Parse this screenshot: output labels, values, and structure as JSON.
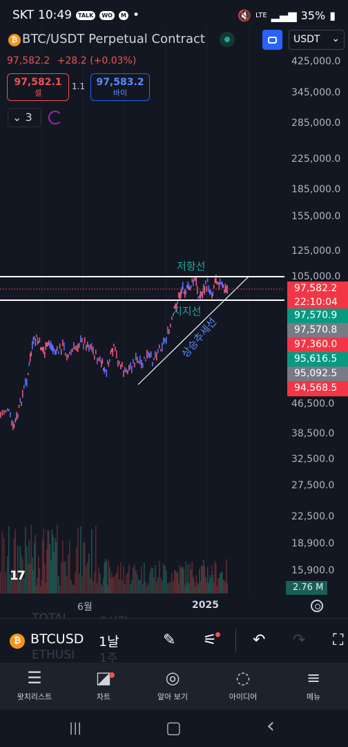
{
  "status": {
    "carrier": "SKT",
    "time": "10:49",
    "pill1": "TALK",
    "pill2": "WO",
    "pill3": "M",
    "network": "LTE",
    "battery": "35%"
  },
  "header": {
    "coin_symbol": "₿",
    "title": "BTC/USDT Perpetual Contract",
    "currency": "USDT"
  },
  "price": {
    "last": "97,582.2",
    "change": "+28.2 (+0.03%)"
  },
  "sell": {
    "value": "97,582.1",
    "label": "셀"
  },
  "spread": "1.1",
  "buy": {
    "value": "97,583.2",
    "label": "바이"
  },
  "indicators": {
    "count": "3",
    "chevron": "⌄"
  },
  "price_axis": [
    "425,000.0",
    "345,000.0",
    "285,000.0",
    "225,000.0",
    "185,000.0",
    "155,000.0",
    "125,000.0",
    "105,000.0",
    "46,500.0",
    "38,500.0",
    "32,500.0",
    "27,500.0",
    "22,500.0",
    "18,900.0",
    "15,900.0"
  ],
  "price_tags": [
    {
      "text": "97,582.2",
      "color": "#f23645"
    },
    {
      "text": "22:10:04",
      "color": "#f23645"
    },
    {
      "text": "97,570.9",
      "color": "#089981"
    },
    {
      "text": "97,570.8",
      "color": "#787b86"
    },
    {
      "text": "97,360.0",
      "color": "#f23645"
    },
    {
      "text": "95,616.5",
      "color": "#089981"
    },
    {
      "text": "95,092.5",
      "color": "#787b86"
    },
    {
      "text": "94,568.5",
      "color": "#f23645"
    }
  ],
  "annotations": {
    "resistance": "저항선",
    "support": "지지선",
    "uptrend": "상승추세선"
  },
  "volume_tag": "2.76 M",
  "time_axis": [
    "6월",
    "2025"
  ],
  "logo": "17",
  "ghost": {
    "total": "TOTAL",
    "total_val": "8시간",
    "eth": "ETHUSI",
    "eth_val": "1주"
  },
  "toolbar": {
    "coin_symbol": "₿",
    "symbol": "BTCUSD",
    "interval": "1날",
    "draw_icon": "✎",
    "settings_icon": "⚟",
    "undo_icon": "↶",
    "redo_icon": "↷",
    "more_icon": "⛶"
  },
  "nav": [
    {
      "label": "왓치리스트",
      "icon": "☰"
    },
    {
      "label": "차트",
      "icon": "◪"
    },
    {
      "label": "알아 보기",
      "icon": "◎"
    },
    {
      "label": "아이디어",
      "icon": "◌"
    },
    {
      "label": "메뉴",
      "icon": "≡"
    }
  ],
  "sysnav": {
    "recent": "|||",
    "home": "▢",
    "back": "‹"
  },
  "colors": {
    "up": "#089981",
    "down": "#f23645",
    "accent": "#2962ff"
  }
}
